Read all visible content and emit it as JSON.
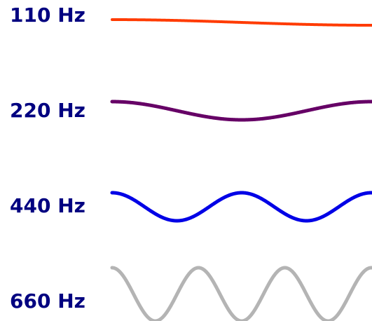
{
  "waves": [
    {
      "label": "110 Hz",
      "frequency": 110,
      "color": "#ff3b00",
      "label_color": "#000080"
    },
    {
      "label": "220 Hz",
      "frequency": 220,
      "color": "#660066",
      "label_color": "#000080"
    },
    {
      "label": "440 Hz",
      "frequency": 440,
      "color": "#0000e6",
      "label_color": "#000080"
    },
    {
      "label": "660 Hz",
      "frequency": 660,
      "color": "#b4b4b4",
      "label_color": "#000080"
    }
  ]
}
